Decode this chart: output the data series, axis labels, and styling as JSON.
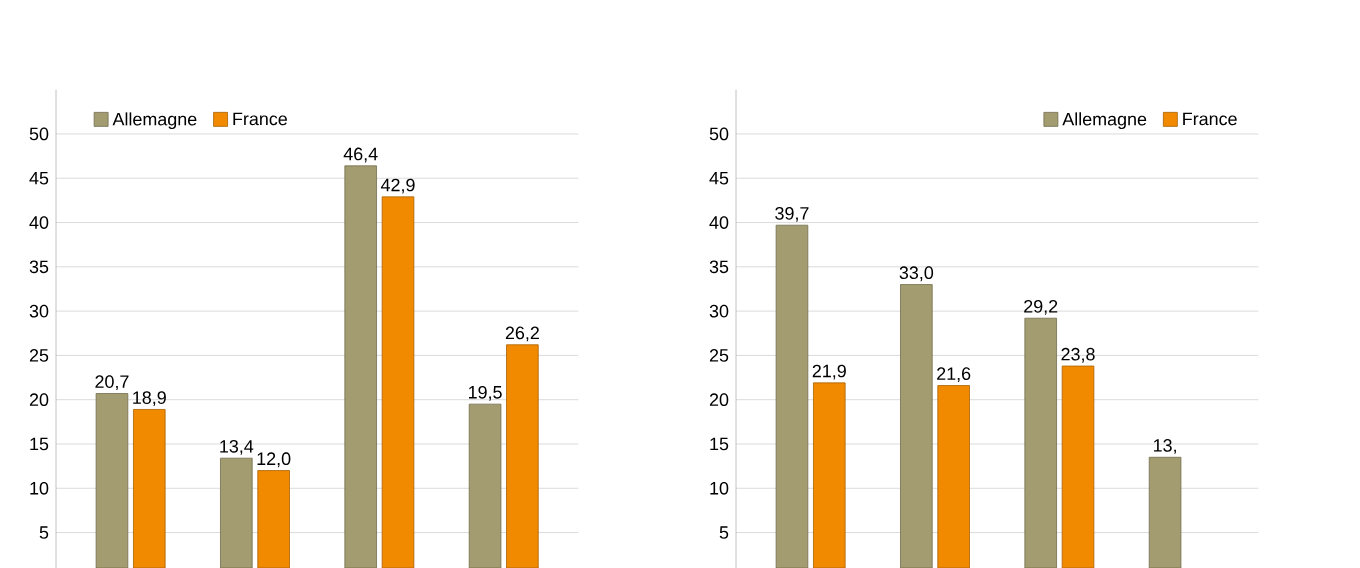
{
  "chart_data": [
    {
      "type": "bar",
      "categories": [
        null,
        null,
        null,
        null
      ],
      "ylim": [
        1,
        55
      ],
      "yticks": [
        5,
        10,
        15,
        20,
        25,
        30,
        35,
        40,
        45,
        50
      ],
      "grid": "y",
      "legend": "top left",
      "tick_labels": "y",
      "series": [
        {
          "name": "Allemagne",
          "color": "#a39c70",
          "values": [
            20.7,
            13.4,
            46.4,
            19.5
          ],
          "value_labels": [
            "20,7",
            "13,4",
            "46,4",
            "19,5"
          ]
        },
        {
          "name": "France",
          "color": "#f28a00",
          "values": [
            18.9,
            12.0,
            42.9,
            26.2
          ],
          "value_labels": [
            "18,9",
            "12,0",
            "42,9",
            "26,2"
          ]
        }
      ]
    },
    {
      "type": "bar",
      "categories": [
        null,
        null,
        null,
        null
      ],
      "ylim": [
        1,
        55
      ],
      "yticks": [
        5,
        10,
        15,
        20,
        25,
        30,
        35,
        40,
        45,
        50
      ],
      "grid": "y",
      "legend": "top right",
      "tick_labels": "y",
      "series": [
        {
          "name": "Allemagne",
          "color": "#a39c70",
          "values": [
            39.7,
            33.0,
            29.2,
            13.5
          ],
          "value_labels": [
            "39,7",
            "33,0",
            "29,2",
            "13,"
          ]
        },
        {
          "name": "France",
          "color": "#f28a00",
          "values": [
            21.9,
            21.6,
            23.8,
            null
          ],
          "value_labels": [
            "21,9",
            "21,6",
            "23,8",
            null
          ]
        }
      ]
    }
  ]
}
